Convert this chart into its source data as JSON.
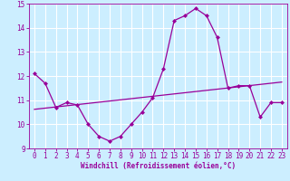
{
  "hours": [
    0,
    1,
    2,
    3,
    4,
    5,
    6,
    7,
    8,
    9,
    10,
    11,
    12,
    13,
    14,
    15,
    16,
    17,
    18,
    19,
    20,
    21,
    22,
    23
  ],
  "windchill": [
    12.1,
    11.7,
    10.7,
    10.9,
    10.8,
    10.0,
    9.5,
    9.3,
    9.5,
    10.0,
    10.5,
    11.1,
    12.3,
    14.3,
    14.5,
    14.8,
    14.5,
    13.6,
    11.5,
    11.6,
    11.6,
    10.3,
    10.9,
    10.9
  ],
  "trend_x": [
    0,
    23
  ],
  "trend_y": [
    10.62,
    11.75
  ],
  "line_color": "#990099",
  "bg_color": "#cceeff",
  "grid_color": "#ffffff",
  "tick_color": "#990099",
  "ylim": [
    9,
    15
  ],
  "yticks": [
    9,
    10,
    11,
    12,
    13,
    14,
    15
  ],
  "xlim": [
    -0.5,
    23.5
  ],
  "xlabel": "Windchill (Refroidissement éolien,°C)",
  "marker": "D",
  "markersize": 2.0,
  "linewidth": 0.9,
  "tick_fontsize": 5.5,
  "xlabel_fontsize": 5.5
}
